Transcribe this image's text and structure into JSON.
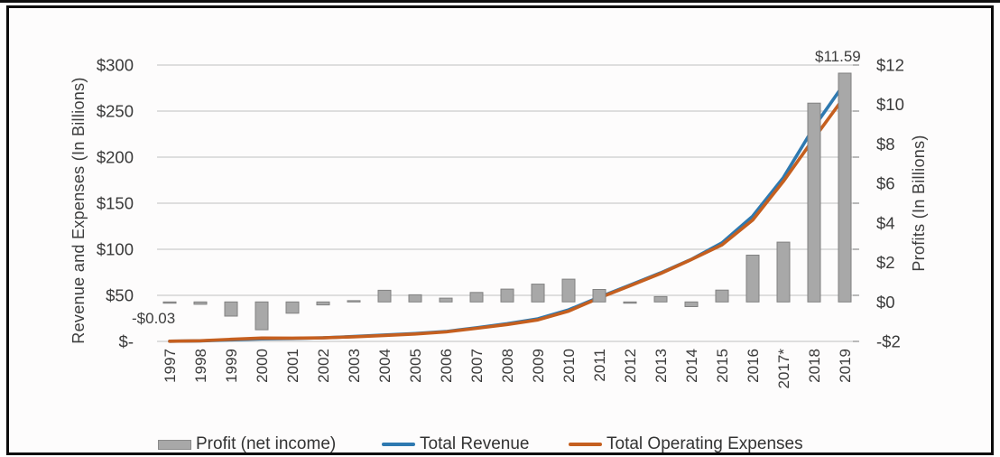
{
  "colors": {
    "bar_fill": "#a8a8a8",
    "bar_stroke": "#818181",
    "revenue_line": "#2e79b0",
    "opex_line": "#c55f1f",
    "gridline": "#cccccc",
    "text": "#3a3a3a",
    "frame": "#0d0d0d"
  },
  "chart_data": {
    "type": "combo-bar-line",
    "title": "",
    "categories": [
      "1997",
      "1998",
      "1999",
      "2000",
      "2001",
      "2002",
      "2003",
      "2004",
      "2005",
      "2006",
      "2007",
      "2008",
      "2009",
      "2010",
      "2011",
      "2012",
      "2013",
      "2014",
      "2015",
      "2016",
      "2017*",
      "2018",
      "2019"
    ],
    "series": [
      {
        "name": "Profit (net income)",
        "type": "bar",
        "axis": "right",
        "color": "#a8a8a8",
        "values": [
          -0.03,
          -0.12,
          -0.72,
          -1.41,
          -0.57,
          -0.15,
          0.04,
          0.59,
          0.36,
          0.19,
          0.48,
          0.65,
          0.9,
          1.15,
          0.63,
          -0.04,
          0.27,
          -0.24,
          0.6,
          2.37,
          3.03,
          10.07,
          11.59
        ]
      },
      {
        "name": "Total Revenue",
        "type": "line",
        "axis": "left",
        "color": "#2e79b0",
        "values": [
          0.15,
          0.61,
          1.64,
          2.76,
          3.12,
          3.93,
          5.26,
          6.92,
          8.49,
          10.71,
          14.84,
          19.17,
          24.51,
          34.2,
          48.08,
          61.09,
          74.45,
          88.99,
          107.01,
          135.99,
          177.87,
          232.89,
          280.52
        ]
      },
      {
        "name": "Total Operating Expenses",
        "type": "line",
        "axis": "left",
        "color": "#c55f1f",
        "values": [
          0.18,
          0.67,
          2.24,
          3.62,
          3.53,
          3.86,
          4.99,
          6.48,
          8.06,
          10.32,
          14.19,
          18.33,
          23.38,
          32.8,
          47.22,
          60.41,
          73.71,
          88.81,
          104.77,
          131.8,
          173.76,
          220.47,
          265.98
        ]
      }
    ],
    "left_axis": {
      "label": "Revenue and Expenses (In Billions)",
      "ticks": [
        "$300",
        "$250",
        "$200",
        "$150",
        "$100",
        "$50",
        "$-"
      ],
      "min": 0,
      "max": 300
    },
    "right_axis": {
      "label": "Profits (In Billions)",
      "ticks": [
        "$12",
        "$10",
        "$8",
        "$6",
        "$4",
        "$2",
        "$0",
        "-$2"
      ],
      "min": -2,
      "max": 12
    },
    "annotations": [
      {
        "text": "-$0.03",
        "target": "1997 profit bar"
      },
      {
        "text": "$11.59",
        "target": "2019 profit bar"
      }
    ],
    "legend_position": "bottom",
    "grid": "horizontal"
  }
}
